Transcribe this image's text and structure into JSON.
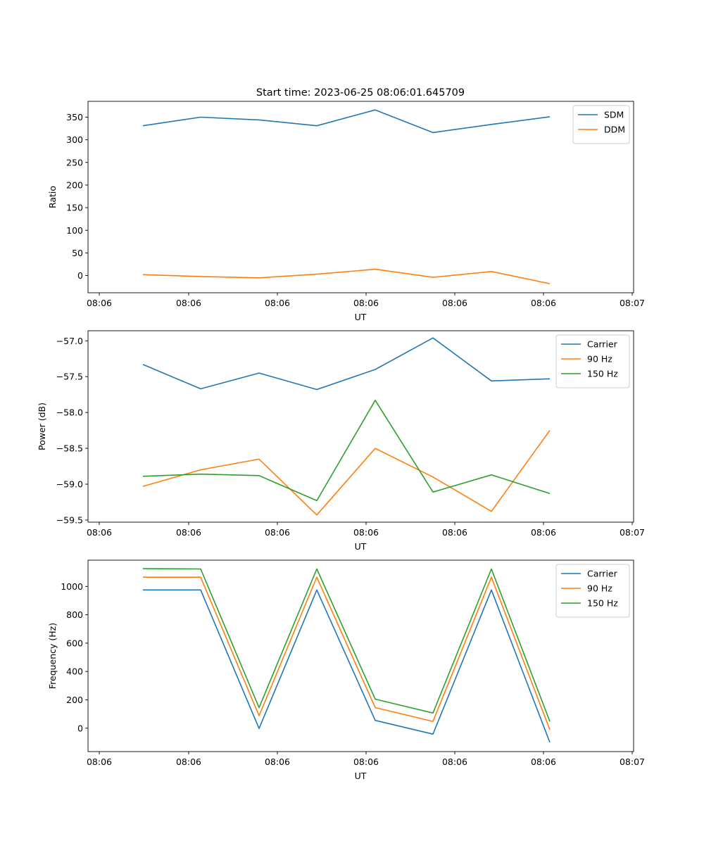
{
  "figure": {
    "title": "Start time: 2023-06-25 08:06:01.645709"
  },
  "chart_data": [
    {
      "type": "line",
      "xlabel": "UT",
      "ylabel": "Ratio",
      "x_tick_labels": [
        "08:06",
        "08:06",
        "08:06",
        "08:06",
        "08:06",
        "08:06",
        "08:07"
      ],
      "y_ticks": [
        0,
        50,
        100,
        150,
        200,
        250,
        300,
        350
      ],
      "ylim": [
        -38,
        385
      ],
      "grid": false,
      "legend": "top-right",
      "series": [
        {
          "name": "SDM",
          "color": "#1f77b4",
          "values": [
            331,
            350,
            344,
            331,
            366,
            316,
            334,
            351
          ]
        },
        {
          "name": "DDM",
          "color": "#ff7f0e",
          "values": [
            2,
            -2,
            -5,
            3,
            14,
            -4,
            9,
            -18
          ]
        }
      ]
    },
    {
      "type": "line",
      "xlabel": "UT",
      "ylabel": "Power (dB)",
      "x_tick_labels": [
        "08:06",
        "08:06",
        "08:06",
        "08:06",
        "08:06",
        "08:06",
        "08:07"
      ],
      "y_ticks": [
        -59.5,
        -59.0,
        -58.5,
        -58.0,
        -57.5,
        -57.0
      ],
      "y_tick_labels": [
        "−59.5",
        "−59.0",
        "−58.5",
        "−58.0",
        "−57.5",
        "−57.0"
      ],
      "ylim": [
        -59.53,
        -56.86
      ],
      "grid": false,
      "legend": "top-right",
      "series": [
        {
          "name": "Carrier",
          "color": "#1f77b4",
          "values": [
            -57.33,
            -57.67,
            -57.45,
            -57.68,
            -57.4,
            -56.96,
            -57.56,
            -57.53
          ]
        },
        {
          "name": "90 Hz",
          "color": "#ff7f0e",
          "values": [
            -59.03,
            -58.8,
            -58.65,
            -59.43,
            -58.5,
            -58.9,
            -59.38,
            -58.25
          ]
        },
        {
          "name": "150 Hz",
          "color": "#2ca02c",
          "values": [
            -58.89,
            -58.86,
            -58.88,
            -59.23,
            -57.83,
            -59.11,
            -58.87,
            -59.13
          ]
        }
      ]
    },
    {
      "type": "line",
      "xlabel": "UT",
      "ylabel": "Frequency (Hz)",
      "x_tick_labels": [
        "08:06",
        "08:06",
        "08:06",
        "08:06",
        "08:06",
        "08:06",
        "08:07"
      ],
      "y_ticks": [
        0,
        200,
        400,
        600,
        800,
        1000
      ],
      "ylim": [
        -165,
        1185
      ],
      "grid": false,
      "legend": "top-right",
      "series": [
        {
          "name": "Carrier",
          "color": "#1f77b4",
          "values": [
            975,
            975,
            -2,
            975,
            55,
            -42,
            975,
            -100
          ]
        },
        {
          "name": "90 Hz",
          "color": "#ff7f0e",
          "values": [
            1065,
            1065,
            88,
            1065,
            145,
            48,
            1065,
            -10
          ]
        },
        {
          "name": "150 Hz",
          "color": "#2ca02c",
          "values": [
            1125,
            1123,
            145,
            1123,
            205,
            107,
            1123,
            48
          ]
        }
      ]
    }
  ]
}
